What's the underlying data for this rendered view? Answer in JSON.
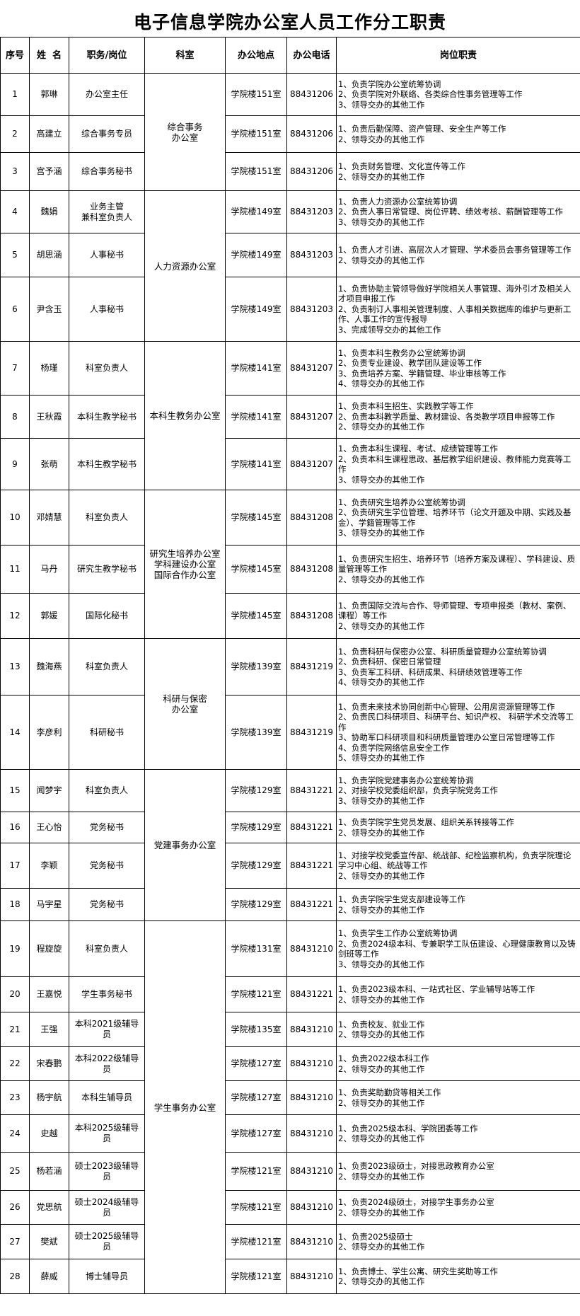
{
  "title": "电子信息学院办公室人员工作分工职责",
  "headers": [
    "序号",
    "姓  名",
    "职务/岗位",
    "科室",
    "办公地点",
    "办公电话",
    "岗位职责"
  ],
  "departments": [
    {
      "name": "综合事务\n办公室",
      "rows": [
        1,
        2,
        3
      ]
    },
    {
      "name": "人力资源办公室",
      "rows": [
        4,
        5,
        6
      ]
    },
    {
      "name": "本科生教务办公室",
      "rows": [
        7,
        8,
        9
      ]
    },
    {
      "name": "研究生培养办公室\n学科建设办公室\n国际合作办公室",
      "rows": [
        10,
        11,
        12
      ]
    },
    {
      "name": "科研与保密\n办公室",
      "rows": [
        13,
        14
      ]
    },
    {
      "name": "党建事务办公室",
      "rows": [
        15,
        16,
        17,
        18
      ]
    },
    {
      "name": "学生事务办公室",
      "rows": [
        19,
        20,
        21,
        22,
        23,
        24,
        25,
        26,
        27,
        28
      ]
    }
  ],
  "rows": [
    {
      "no": "1",
      "name": "郭琳",
      "position": "办公室主任",
      "location": "学院楼151室",
      "phone": "88431206",
      "duties": "1、负责学院办公室统筹协调\n2、负责学院对外联络、各类综合性事务管理等工作\n3、领导交办的其他工作"
    },
    {
      "no": "2",
      "name": "高建立",
      "position": "综合事务专员",
      "location": "学院楼151室",
      "phone": "88431206",
      "duties": "1、负责后勤保障、资产管理、安全生产等工作\n2、领导交办的其他工作"
    },
    {
      "no": "3",
      "name": "宫予涵",
      "position": "综合事务秘书",
      "location": "学院楼151室",
      "phone": "88431206",
      "duties": "1、负责财务管理、文化宣传等工作\n2、领导交办的其他工作"
    },
    {
      "no": "4",
      "name": "魏娟",
      "position": "业务主管\n兼科室负责人",
      "location": "学院楼149室",
      "phone": "88431203",
      "duties": "1、负责人力资源办公室统筹协调\n2、负责人事日常管理、岗位评聘、绩效考核、薪酬管理等工作\n3、领导交办的其他工作"
    },
    {
      "no": "5",
      "name": "胡思涵",
      "position": "人事秘书",
      "location": "学院楼149室",
      "phone": "88431203",
      "duties": "1、负责人才引进、高层次人才管理、学术委员会事务管理等工作\n2、领导交办的其他工作"
    },
    {
      "no": "6",
      "name": "尹含玉",
      "position": "人事秘书",
      "location": "学院楼149室",
      "phone": "88431203",
      "duties": "1、负责协助主管领导做好学院相关人事管理、海外引才及相关人才项目申报工作\n2、负责制订人事相关管理制度、人事相关数据库的维护与更新工作、人事工作的宣传报导\n3、完成领导交办的其他工作"
    },
    {
      "no": "7",
      "name": "杨瑾",
      "position": "科室负责人",
      "location": "学院楼141室",
      "phone": "88431207",
      "duties": "1、负责本科生教务办公室统筹协调\n2、负责专业建设、教学团队建设等工作\n3、负责培养方案、学籍管理、毕业审核等工作\n4、领导交办的其他工作"
    },
    {
      "no": "8",
      "name": "王秋霞",
      "position": "本科生教学秘书",
      "location": "学院楼141室",
      "phone": "88431207",
      "duties": "1、负责本科生招生、实践教学等工作\n2、负责本科教学质量、教材建设、各类教学项目申报等工作\n2、领导交办的其他工作"
    },
    {
      "no": "9",
      "name": "张萌",
      "position": "本科生教学秘书",
      "location": "学院楼141室",
      "phone": "88431207",
      "duties": "1、负责本科生课程、考试、成绩管理等工作\n2、负责本科生课程思政、基层教学组织建设、教师能力竞赛等工作\n3、领导交办的其他工作"
    },
    {
      "no": "10",
      "name": "邓婧慧",
      "position": "科室负责人",
      "location": "学院楼145室",
      "phone": "88431208",
      "duties": "1、负责研究生培养办公室统筹协调\n2、负责研究生学位管理、培养环节（论文开题及中期、实践及基金）、学籍管理等工作\n3、领导交办的其他工作"
    },
    {
      "no": "11",
      "name": "马丹",
      "position": "研究生教学秘书",
      "location": "学院楼145室",
      "phone": "88431208",
      "duties": "1、负责研究生招生、培养环节（培养方案及课程）、学科建设、质量管理等工作\n2、领导交办的其他工作"
    },
    {
      "no": "12",
      "name": "郭媛",
      "position": "国际化秘书",
      "location": "学院楼145室",
      "phone": "88431208",
      "duties": "1、负责国际交流与合作、导师管理、专项申报类（教材、案例、课程）等工作\n2、领导交办的其他工作"
    },
    {
      "no": "13",
      "name": "魏海燕",
      "position": "科室负责人",
      "location": "学院楼139室",
      "phone": "88431219",
      "duties": "1、负责科研与保密办公室、科研质量管理办公室统筹协调\n2、负责科研、保密日常管理\n3、负责军工科研、科研成果、科研绩效管理等工作\n4、领导交办的其他工作"
    },
    {
      "no": "14",
      "name": "李彦利",
      "position": "科研秘书",
      "location": "学院楼139室",
      "phone": "88431219",
      "duties": "1、负责未来技术协同创新中心管理、公用房资源管理等工作\n2、负责民口科研项目、科研平台、知识产权、 科研学术交流等工作\n3、协助军口科研项目和科研质量管理办公室日常管理等工作\n4、负责学院网络信息安全工作\n5、领导交办的其他工作"
    },
    {
      "no": "15",
      "name": "闻梦宇",
      "position": "科室负责人",
      "location": "学院楼129室",
      "phone": "88431221",
      "duties": "1、负责学院党建事务办公室统筹协调\n2、对接学校党委组织部，负责学院党务工作\n3、领导交办的其他工作"
    },
    {
      "no": "16",
      "name": "王心怡",
      "position": "党务秘书",
      "location": "学院楼129室",
      "phone": "88431221",
      "duties": "1、负责学院学生党员发展、组织关系转接等工作\n2、领导交办的其他工作"
    },
    {
      "no": "17",
      "name": "李颖",
      "position": "党务秘书",
      "location": "学院楼129室",
      "phone": "88431221",
      "duties": "1、对接学校党委宣传部、统战部、纪检监察机构，负责学院理论学习中心组、统战等工作\n2、领导交办的其他工作"
    },
    {
      "no": "18",
      "name": "马宇星",
      "position": "党务秘书",
      "location": "学院楼129室",
      "phone": "88431221",
      "duties": "1、负责学院学生党支部建设等工作\n2、领导交办的其他工作"
    },
    {
      "no": "19",
      "name": "程旋旋",
      "position": "科室负责人",
      "location": "学院楼131室",
      "phone": "88431210",
      "duties": "1、负责学生工作办公室统筹协调\n2、负责2024级本科、专兼职学工队伍建设、心理健康教育以及铸剑班等工作\n3、领导交办的其他工作"
    },
    {
      "no": "20",
      "name": "王嘉悦",
      "position": "学生事务秘书",
      "location": "学院楼121室",
      "phone": "88431221",
      "duties": "1、负责2023级本科、一站式社区、学业辅导站等工作\n2、领导交办的其他工作"
    },
    {
      "no": "21",
      "name": "王强",
      "position": "本科2021级辅导员",
      "location": "学院楼135室",
      "phone": "88431210",
      "duties": "1、负责校友、就业工作\n2、领导交办的其他工作"
    },
    {
      "no": "22",
      "name": "宋春鹏",
      "position": "本科2022级辅导员",
      "location": "学院楼127室",
      "phone": "88431210",
      "duties": "1、负责2022级本科工作\n2、领导交办的其他工作"
    },
    {
      "no": "23",
      "name": "杨宇航",
      "position": "本科生辅导员",
      "location": "学院楼127室",
      "phone": "88431210",
      "duties": "1、负责奖助勤贷等相关工作\n2、领导交办的其他工作"
    },
    {
      "no": "24",
      "name": "史越",
      "position": "本科2025级辅导员",
      "location": "学院楼127室",
      "phone": "88431210",
      "duties": "1、负责2025级本科、学院团委等工作\n2、领导交办的其他工作"
    },
    {
      "no": "25",
      "name": "杨若涵",
      "position": "硕士2023级辅导员",
      "location": "学院楼121室",
      "phone": "88431210",
      "duties": "1、负责2023级硕士，对接思政教育办公室\n2、领导交办的其他工作"
    },
    {
      "no": "26",
      "name": "党思航",
      "position": "硕士2024级辅导员",
      "location": "学院楼121室",
      "phone": "88431210",
      "duties": "1、负责2024级硕士，对接学生事务办公室\n2、领导交办的其他工作"
    },
    {
      "no": "27",
      "name": "樊斌",
      "position": "硕士2025级辅导员",
      "location": "学院楼121室",
      "phone": "88431210",
      "duties": "1、负责2025级硕士\n2、领导交办的其他工作"
    },
    {
      "no": "28",
      "name": "薛威",
      "position": "博士辅导员",
      "location": "学院楼121室",
      "phone": "88431210",
      "duties": "1、负责博士、学生公寓、研究生奖助等工作\n2、领导交办的其他工作"
    }
  ]
}
